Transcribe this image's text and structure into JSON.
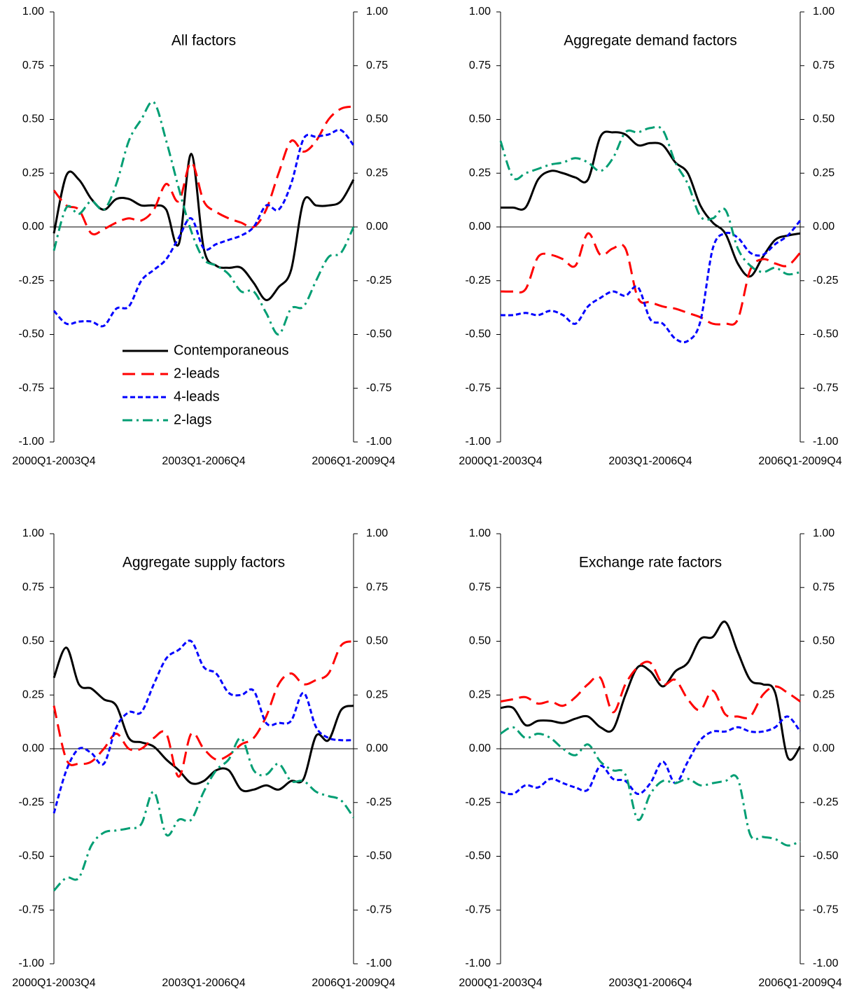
{
  "chart_data": [
    {
      "type": "line",
      "title": "All factors",
      "legend": "bottom",
      "categories": [
        "2000Q1-2003Q4",
        null,
        null,
        null,
        null,
        null,
        null,
        null,
        null,
        null,
        null,
        null,
        "2003Q1-2006Q4",
        null,
        null,
        null,
        null,
        null,
        null,
        null,
        null,
        null,
        null,
        null,
        "2006Q1-2009Q4"
      ],
      "ylim": [
        -1,
        1
      ],
      "yticks": [
        {
          "value": -1,
          "label": "-1.00"
        },
        {
          "value": -0.75,
          "label": "-0.75"
        },
        {
          "value": -0.5,
          "label": "-0.50"
        },
        {
          "value": -0.25,
          "label": "-0.25"
        },
        {
          "value": 0,
          "label": "0.00"
        },
        {
          "value": 0.25,
          "label": "0.25"
        },
        {
          "value": 0.5,
          "label": "0.50"
        },
        {
          "value": 0.75,
          "label": "0.75"
        },
        {
          "value": 1,
          "label": "1.00"
        }
      ],
      "y2lim": [
        -1,
        1
      ],
      "y2ticks": [
        {
          "value": -1,
          "label": "-1.00"
        },
        {
          "value": -0.75,
          "label": "-0.75"
        },
        {
          "value": -0.5,
          "label": "-0.50"
        },
        {
          "value": -0.25,
          "label": "-0.25"
        },
        {
          "value": 0,
          "label": "0.00"
        },
        {
          "value": 0.25,
          "label": "0.25"
        },
        {
          "value": 0.5,
          "label": "0.50"
        },
        {
          "value": 0.75,
          "label": "0.75"
        },
        {
          "value": 1,
          "label": "1.00"
        }
      ],
      "series": [
        {
          "name": "Contemporaneous",
          "color": "#000000",
          "style": "solid",
          "values": [
            -0.03,
            0.24,
            0.22,
            0.13,
            0.08,
            0.13,
            0.13,
            0.1,
            0.1,
            0.08,
            -0.08,
            0.34,
            -0.1,
            -0.18,
            -0.19,
            -0.19,
            -0.26,
            -0.34,
            -0.28,
            -0.2,
            0.12,
            0.1,
            0.1,
            0.12,
            0.22
          ]
        },
        {
          "name": "2-leads",
          "color": "#ff0000",
          "style": "dashed",
          "values": [
            0.17,
            0.1,
            0.08,
            -0.03,
            -0.01,
            0.02,
            0.04,
            0.03,
            0.08,
            0.2,
            0.12,
            0.3,
            0.12,
            0.07,
            0.04,
            0.02,
            0.0,
            0.08,
            0.25,
            0.4,
            0.35,
            0.4,
            0.5,
            0.55,
            0.56
          ]
        },
        {
          "name": "4-leads",
          "color": "#0000ff",
          "style": "dotted",
          "values": [
            -0.39,
            -0.45,
            -0.44,
            -0.44,
            -0.46,
            -0.38,
            -0.37,
            -0.25,
            -0.2,
            -0.15,
            -0.05,
            0.04,
            -0.1,
            -0.08,
            -0.06,
            -0.04,
            0.0,
            0.1,
            0.08,
            0.2,
            0.41,
            0.42,
            0.43,
            0.45,
            0.38
          ]
        },
        {
          "name": "2-lags",
          "color": "#009e73",
          "style": "dashdot",
          "values": [
            -0.11,
            0.09,
            0.06,
            0.12,
            0.08,
            0.2,
            0.4,
            0.5,
            0.58,
            0.4,
            0.18,
            -0.02,
            -0.15,
            -0.18,
            -0.22,
            -0.3,
            -0.3,
            -0.4,
            -0.5,
            -0.38,
            -0.37,
            -0.25,
            -0.14,
            -0.12,
            0.0
          ]
        }
      ]
    },
    {
      "type": "line",
      "title": "Aggregate demand factors",
      "categories": [
        "2000Q1-2003Q4",
        null,
        null,
        null,
        null,
        null,
        null,
        null,
        null,
        null,
        null,
        null,
        "2003Q1-2006Q4",
        null,
        null,
        null,
        null,
        null,
        null,
        null,
        null,
        null,
        null,
        null,
        "2006Q1-2009Q4"
      ],
      "ylim": [
        -1,
        1
      ],
      "yticks": [
        {
          "value": -1,
          "label": "-1.00"
        },
        {
          "value": -0.75,
          "label": "-0.75"
        },
        {
          "value": -0.5,
          "label": "-0.50"
        },
        {
          "value": -0.25,
          "label": "-0.25"
        },
        {
          "value": 0,
          "label": "0.00"
        },
        {
          "value": 0.25,
          "label": "0.25"
        },
        {
          "value": 0.5,
          "label": "0.50"
        },
        {
          "value": 0.75,
          "label": "0.75"
        },
        {
          "value": 1,
          "label": "1.00"
        }
      ],
      "y2lim": [
        -1,
        1
      ],
      "y2ticks": [
        {
          "value": -1,
          "label": "-1.00"
        },
        {
          "value": -0.75,
          "label": "-0.75"
        },
        {
          "value": -0.5,
          "label": "-0.50"
        },
        {
          "value": -0.25,
          "label": "-0.25"
        },
        {
          "value": 0,
          "label": "0.00"
        },
        {
          "value": 0.25,
          "label": "0.25"
        },
        {
          "value": 0.5,
          "label": "0.50"
        },
        {
          "value": 0.75,
          "label": "0.75"
        },
        {
          "value": 1,
          "label": "1.00"
        }
      ],
      "series": [
        {
          "color": "#000000",
          "style": "solid",
          "values": [
            0.09,
            0.09,
            0.09,
            0.22,
            0.26,
            0.25,
            0.23,
            0.22,
            0.42,
            0.44,
            0.43,
            0.38,
            0.39,
            0.38,
            0.3,
            0.25,
            0.1,
            0.02,
            -0.03,
            -0.17,
            -0.23,
            -0.14,
            -0.06,
            -0.04,
            -0.03
          ]
        },
        {
          "color": "#ff0000",
          "style": "dashed",
          "values": [
            -0.3,
            -0.3,
            -0.29,
            -0.14,
            -0.13,
            -0.15,
            -0.18,
            -0.03,
            -0.13,
            -0.1,
            -0.1,
            -0.33,
            -0.35,
            -0.37,
            -0.38,
            -0.4,
            -0.42,
            -0.45,
            -0.45,
            -0.43,
            -0.2,
            -0.15,
            -0.17,
            -0.18,
            -0.12
          ]
        },
        {
          "color": "#0000ff",
          "style": "dotted",
          "values": [
            -0.41,
            -0.41,
            -0.4,
            -0.41,
            -0.39,
            -0.41,
            -0.45,
            -0.37,
            -0.33,
            -0.3,
            -0.32,
            -0.28,
            -0.43,
            -0.45,
            -0.52,
            -0.53,
            -0.44,
            -0.1,
            -0.03,
            -0.05,
            -0.12,
            -0.13,
            -0.08,
            -0.04,
            0.03
          ]
        },
        {
          "color": "#009e73",
          "style": "dashdot",
          "values": [
            0.4,
            0.23,
            0.25,
            0.27,
            0.29,
            0.3,
            0.32,
            0.3,
            0.26,
            0.32,
            0.44,
            0.44,
            0.46,
            0.45,
            0.3,
            0.2,
            0.05,
            0.04,
            0.08,
            -0.1,
            -0.18,
            -0.21,
            -0.19,
            -0.22,
            -0.21
          ]
        }
      ]
    },
    {
      "type": "line",
      "title": "Aggregate supply factors",
      "categories": [
        "2000Q1-2003Q4",
        null,
        null,
        null,
        null,
        null,
        null,
        null,
        null,
        null,
        null,
        null,
        "2003Q1-2006Q4",
        null,
        null,
        null,
        null,
        null,
        null,
        null,
        null,
        null,
        null,
        null,
        "2006Q1-2009Q4"
      ],
      "ylim": [
        -1,
        1
      ],
      "yticks": [
        {
          "value": -1,
          "label": "-1.00"
        },
        {
          "value": -0.75,
          "label": "-0.75"
        },
        {
          "value": -0.5,
          "label": "-0.50"
        },
        {
          "value": -0.25,
          "label": "-0.25"
        },
        {
          "value": 0,
          "label": "0.00"
        },
        {
          "value": 0.25,
          "label": "0.25"
        },
        {
          "value": 0.5,
          "label": "0.50"
        },
        {
          "value": 0.75,
          "label": "0.75"
        },
        {
          "value": 1,
          "label": "1.00"
        }
      ],
      "y2lim": [
        -1,
        1
      ],
      "y2ticks": [
        {
          "value": -1,
          "label": "-1.00"
        },
        {
          "value": -0.75,
          "label": "-0.75"
        },
        {
          "value": -0.5,
          "label": "-0.50"
        },
        {
          "value": -0.25,
          "label": "-0.25"
        },
        {
          "value": 0,
          "label": "0.00"
        },
        {
          "value": 0.25,
          "label": "0.25"
        },
        {
          "value": 0.5,
          "label": "0.50"
        },
        {
          "value": 0.75,
          "label": "0.75"
        },
        {
          "value": 1,
          "label": "1.00"
        }
      ],
      "series": [
        {
          "color": "#000000",
          "style": "solid",
          "values": [
            0.33,
            0.47,
            0.3,
            0.28,
            0.23,
            0.2,
            0.05,
            0.03,
            0.01,
            -0.05,
            -0.1,
            -0.16,
            -0.15,
            -0.1,
            -0.1,
            -0.19,
            -0.19,
            -0.17,
            -0.19,
            -0.15,
            -0.14,
            0.06,
            0.04,
            0.18,
            0.2
          ]
        },
        {
          "color": "#ff0000",
          "style": "dashed",
          "values": [
            0.2,
            -0.05,
            -0.07,
            -0.06,
            0.0,
            0.07,
            0.0,
            0.0,
            0.05,
            0.07,
            -0.13,
            0.07,
            0.0,
            -0.05,
            -0.03,
            0.02,
            0.05,
            0.15,
            0.3,
            0.35,
            0.3,
            0.32,
            0.35,
            0.48,
            0.5
          ]
        },
        {
          "color": "#0000ff",
          "style": "dotted",
          "values": [
            -0.3,
            -0.1,
            0.0,
            -0.02,
            -0.07,
            0.1,
            0.17,
            0.17,
            0.3,
            0.42,
            0.46,
            0.5,
            0.38,
            0.35,
            0.26,
            0.25,
            0.27,
            0.12,
            0.12,
            0.13,
            0.26,
            0.1,
            0.05,
            0.04,
            0.04
          ]
        },
        {
          "color": "#009e73",
          "style": "dashdot",
          "values": [
            -0.66,
            -0.6,
            -0.6,
            -0.45,
            -0.39,
            -0.38,
            -0.37,
            -0.35,
            -0.2,
            -0.4,
            -0.33,
            -0.33,
            -0.2,
            -0.1,
            -0.05,
            0.05,
            -0.1,
            -0.12,
            -0.07,
            -0.15,
            -0.15,
            -0.2,
            -0.22,
            -0.24,
            -0.32
          ]
        }
      ]
    },
    {
      "type": "line",
      "title": "Exchange rate factors",
      "categories": [
        "2000Q1-2003Q4",
        null,
        null,
        null,
        null,
        null,
        null,
        null,
        null,
        null,
        null,
        null,
        "2003Q1-2006Q4",
        null,
        null,
        null,
        null,
        null,
        null,
        null,
        null,
        null,
        null,
        null,
        "2006Q1-2009Q4"
      ],
      "ylim": [
        -1,
        1
      ],
      "yticks": [
        {
          "value": -1,
          "label": "-1.00"
        },
        {
          "value": -0.75,
          "label": "-0.75"
        },
        {
          "value": -0.5,
          "label": "-0.50"
        },
        {
          "value": -0.25,
          "label": "-0.25"
        },
        {
          "value": 0,
          "label": "0.00"
        },
        {
          "value": 0.25,
          "label": "0.25"
        },
        {
          "value": 0.5,
          "label": "0.50"
        },
        {
          "value": 0.75,
          "label": "0.75"
        },
        {
          "value": 1,
          "label": "1.00"
        }
      ],
      "y2lim": [
        -1,
        1
      ],
      "y2ticks": [
        {
          "value": -1,
          "label": "-1.00"
        },
        {
          "value": -0.75,
          "label": "-0.75"
        },
        {
          "value": -0.5,
          "label": "-0.50"
        },
        {
          "value": -0.25,
          "label": "-0.25"
        },
        {
          "value": 0,
          "label": "0.00"
        },
        {
          "value": 0.25,
          "label": "0.25"
        },
        {
          "value": 0.5,
          "label": "0.50"
        },
        {
          "value": 0.75,
          "label": "0.75"
        },
        {
          "value": 1,
          "label": "1.00"
        }
      ],
      "series": [
        {
          "color": "#000000",
          "style": "solid",
          "values": [
            0.19,
            0.19,
            0.11,
            0.13,
            0.13,
            0.12,
            0.14,
            0.15,
            0.1,
            0.09,
            0.25,
            0.38,
            0.36,
            0.29,
            0.36,
            0.4,
            0.51,
            0.52,
            0.59,
            0.45,
            0.32,
            0.3,
            0.26,
            -0.04,
            0.01
          ]
        },
        {
          "color": "#ff0000",
          "style": "dashed",
          "values": [
            0.22,
            0.23,
            0.24,
            0.21,
            0.22,
            0.2,
            0.24,
            0.3,
            0.33,
            0.17,
            0.3,
            0.38,
            0.4,
            0.3,
            0.32,
            0.23,
            0.18,
            0.27,
            0.16,
            0.15,
            0.15,
            0.25,
            0.29,
            0.26,
            0.22
          ]
        },
        {
          "color": "#0000ff",
          "style": "dotted",
          "values": [
            -0.2,
            -0.21,
            -0.17,
            -0.18,
            -0.14,
            -0.16,
            -0.18,
            -0.19,
            -0.08,
            -0.14,
            -0.15,
            -0.21,
            -0.16,
            -0.06,
            -0.16,
            -0.06,
            0.04,
            0.08,
            0.08,
            0.1,
            0.08,
            0.08,
            0.1,
            0.15,
            0.08
          ]
        },
        {
          "color": "#009e73",
          "style": "dashdot",
          "values": [
            0.07,
            0.1,
            0.05,
            0.07,
            0.05,
            0.0,
            -0.03,
            0.02,
            -0.06,
            -0.1,
            -0.12,
            -0.33,
            -0.21,
            -0.15,
            -0.16,
            -0.14,
            -0.17,
            -0.16,
            -0.15,
            -0.14,
            -0.4,
            -0.41,
            -0.42,
            -0.45,
            -0.43
          ]
        }
      ]
    }
  ]
}
